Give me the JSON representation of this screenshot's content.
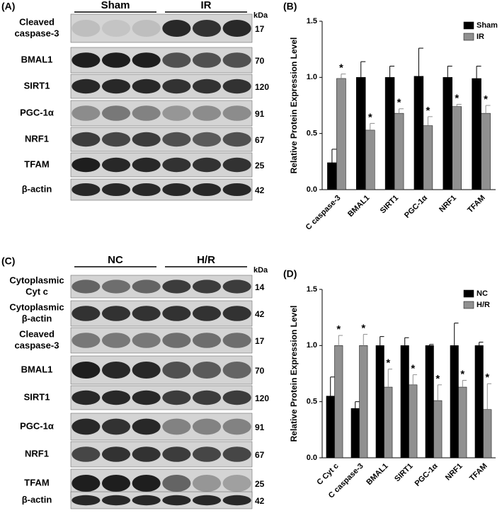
{
  "blots": [
    {
      "label": "(A)",
      "groups": [
        "Sham",
        "IR"
      ],
      "unit": "kDa",
      "rows": [
        {
          "label": [
            "Cleaved",
            "caspase-3"
          ],
          "kda": 17
        },
        {
          "label": [
            "BMAL1"
          ],
          "kda": 70
        },
        {
          "label": [
            "SIRT1"
          ],
          "kda": 120
        },
        {
          "label": [
            "PGC-1α"
          ],
          "kda": 91
        },
        {
          "label": [
            "NRF1"
          ],
          "kda": 67
        },
        {
          "label": [
            "TFAM"
          ],
          "kda": 25
        },
        {
          "label": [
            "β-actin"
          ],
          "kda": 42
        }
      ]
    },
    {
      "label": "(C)",
      "groups": [
        "NC",
        "H/R"
      ],
      "unit": "kDa",
      "rows": [
        {
          "label": [
            "Cytoplasmic",
            "Cyt c"
          ],
          "kda": 14
        },
        {
          "label": [
            "Cytoplasmic",
            "β-actin"
          ],
          "kda": 42
        },
        {
          "label": [
            "Cleaved",
            "caspase-3"
          ],
          "kda": 17
        },
        {
          "label": [
            "BMAL1"
          ],
          "kda": 70
        },
        {
          "label": [
            "SIRT1"
          ],
          "kda": 120
        },
        {
          "label": [
            "PGC-1α"
          ],
          "kda": 91
        },
        {
          "label": [
            "NRF1"
          ],
          "kda": 67
        },
        {
          "label": [
            "TFAM"
          ],
          "kda": 25
        },
        {
          "label": [
            "β-actin"
          ],
          "kda": 42
        }
      ]
    }
  ],
  "chart_data": [
    {
      "type": "bar",
      "label": "(B)",
      "y_label": "Relative Protein Expression Level",
      "categories": [
        "C caspase-3",
        "BMAL1",
        "SIRT1",
        "PGC-1α",
        "NRF1",
        "TFAM"
      ],
      "series": [
        {
          "name": "Sham",
          "color": "#000000",
          "values": [
            0.24,
            1.0,
            1.0,
            1.01,
            1.0,
            0.99
          ],
          "errors": [
            0.12,
            0.14,
            0.1,
            0.25,
            0.1,
            0.11
          ]
        },
        {
          "name": "IR",
          "color": "#909090",
          "values": [
            0.99,
            0.53,
            0.68,
            0.57,
            0.74,
            0.68
          ],
          "errors": [
            0.04,
            0.06,
            0.04,
            0.08,
            0.02,
            0.07
          ],
          "annotations": [
            "*",
            "*",
            "*",
            "*",
            "*",
            "*"
          ]
        }
      ],
      "ylim": [
        0,
        1.5
      ],
      "yticks": [
        {
          "value": 0,
          "label": "0.0"
        },
        {
          "value": 0.5,
          "label": "0.5"
        },
        {
          "value": 1,
          "label": "1.0"
        },
        {
          "value": 1.5,
          "label": "1.5"
        }
      ],
      "legend": "upper right"
    },
    {
      "type": "bar",
      "label": "(D)",
      "y_label": "Relative Protein Expression Level",
      "categories": [
        "C Cyt c",
        "C caspase-3",
        "BMAL1",
        "SIRT1",
        "PGC-1α",
        "NRF1",
        "TFAM"
      ],
      "series": [
        {
          "name": "NC",
          "color": "#000000",
          "values": [
            0.55,
            0.44,
            1.0,
            1.0,
            1.0,
            1.0,
            1.0
          ],
          "errors": [
            0.17,
            0.06,
            0.08,
            0.07,
            0.01,
            0.2,
            0.03
          ]
        },
        {
          "name": "H/R",
          "color": "#909090",
          "values": [
            1.0,
            1.0,
            0.63,
            0.65,
            0.51,
            0.63,
            0.43
          ],
          "errors": [
            0.09,
            0.1,
            0.16,
            0.09,
            0.14,
            0.06,
            0.23
          ],
          "annotations": [
            "*",
            "*",
            "*",
            "*",
            "*",
            "*",
            "*"
          ]
        }
      ],
      "ylim": [
        0,
        1.5
      ],
      "yticks": [
        {
          "value": 0,
          "label": "0.0"
        },
        {
          "value": 0.5,
          "label": "0.5"
        },
        {
          "value": 1,
          "label": "1.0"
        },
        {
          "value": 1.5,
          "label": "1.5"
        }
      ],
      "legend": "upper right"
    }
  ]
}
